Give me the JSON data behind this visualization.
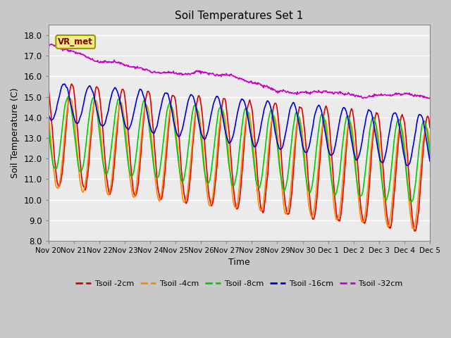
{
  "title": "Soil Temperatures Set 1",
  "xlabel": "Time",
  "ylabel": "Soil Temperature (C)",
  "ylim": [
    8.0,
    18.5
  ],
  "yticks": [
    8.0,
    9.0,
    10.0,
    11.0,
    12.0,
    13.0,
    14.0,
    15.0,
    16.0,
    17.0,
    18.0
  ],
  "x_tick_labels": [
    "Nov 20",
    "Nov 21",
    "Nov 22",
    "Nov 23",
    "Nov 24",
    "Nov 25",
    "Nov 26",
    "Nov 27",
    "Nov 28",
    "Nov 29",
    "Nov 30",
    "Dec 1",
    "Dec 2",
    "Dec 3",
    "Dec 4",
    "Dec 5"
  ],
  "bg_color": "#ebebeb",
  "grid_color": "#ffffff",
  "fig_bg": "#c8c8c8",
  "series": {
    "Tsoil -2cm": {
      "color": "#dd0000"
    },
    "Tsoil -4cm": {
      "color": "#ff8800"
    },
    "Tsoil -8cm": {
      "color": "#00cc00"
    },
    "Tsoil -16cm": {
      "color": "#0000dd"
    },
    "Tsoil -32cm": {
      "color": "#cc00cc"
    }
  },
  "annotation_text": "VR_met",
  "lw": 1.2
}
